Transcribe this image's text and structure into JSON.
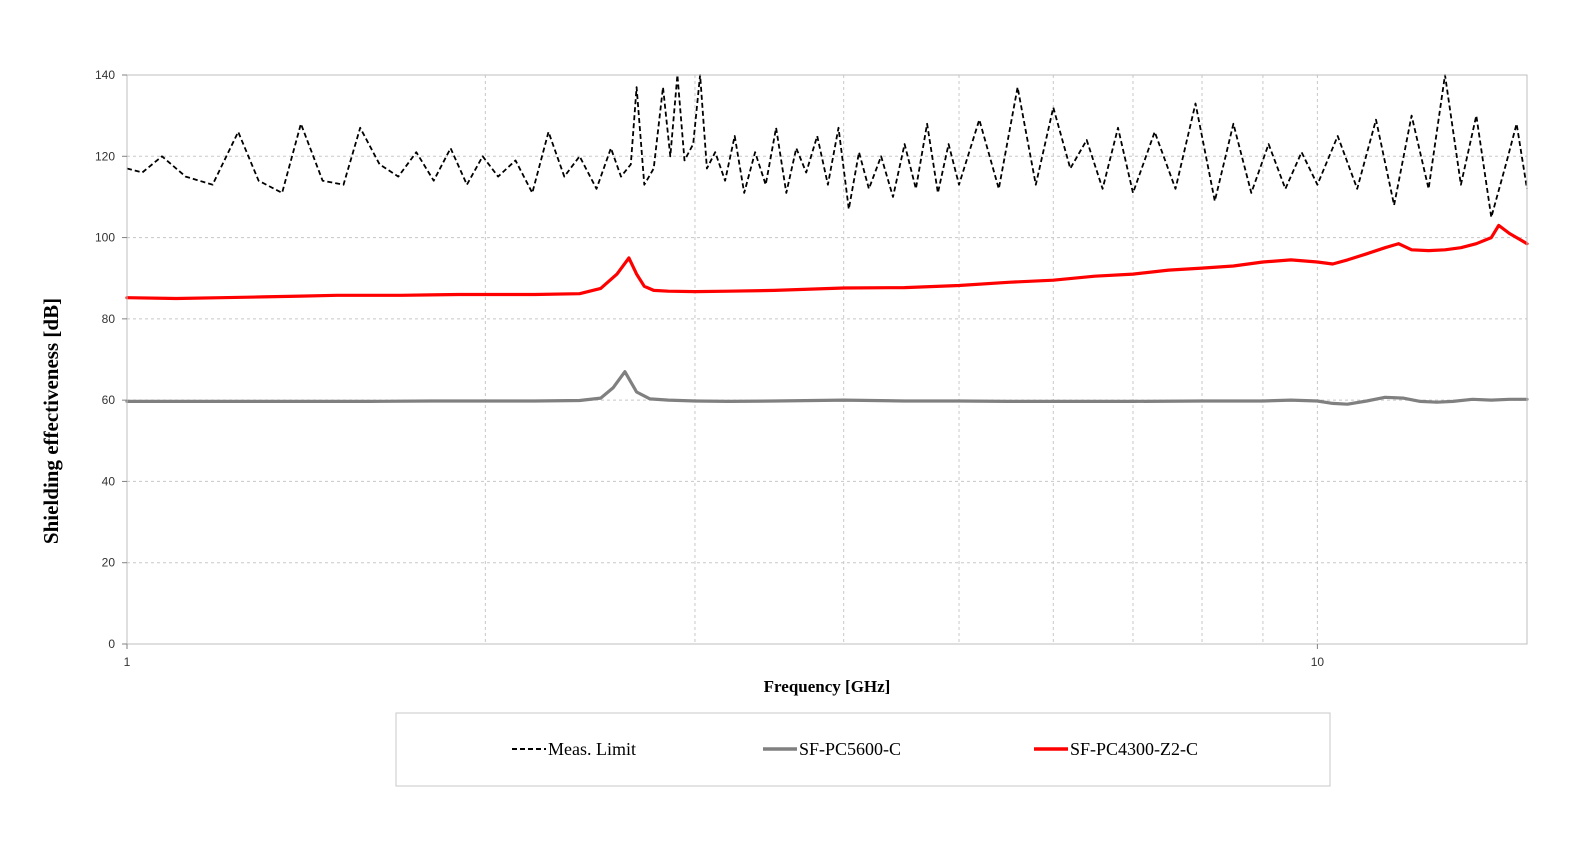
{
  "chart_data": {
    "type": "line",
    "title": "",
    "xlabel": "Frequency [GHz]",
    "ylabel": "Shielding effectiveness [dB]",
    "x_scale": "log",
    "xlim": [
      1,
      15
    ],
    "ylim": [
      0,
      140
    ],
    "x_ticks": [
      1,
      10
    ],
    "x_tick_labels": [
      "1",
      "10"
    ],
    "x_minor_gridlines": [
      2,
      3,
      4,
      5,
      6,
      7,
      8,
      9
    ],
    "y_ticks": [
      0,
      20,
      40,
      60,
      80,
      100,
      120,
      140
    ],
    "y_tick_labels": [
      "0",
      "20",
      "40",
      "60",
      "80",
      "100",
      "120",
      "140"
    ],
    "grid": true,
    "legend_position": "bottom",
    "series": [
      {
        "name": "Meas. Limit",
        "color": "#000000",
        "style": "dashed",
        "x": [
          1.0,
          1.03,
          1.07,
          1.12,
          1.18,
          1.24,
          1.29,
          1.35,
          1.4,
          1.46,
          1.52,
          1.57,
          1.63,
          1.69,
          1.75,
          1.81,
          1.87,
          1.93,
          1.99,
          2.05,
          2.12,
          2.19,
          2.26,
          2.33,
          2.4,
          2.48,
          2.55,
          2.6,
          2.65,
          2.68,
          2.72,
          2.77,
          2.82,
          2.86,
          2.9,
          2.94,
          2.99,
          3.03,
          3.07,
          3.12,
          3.18,
          3.24,
          3.3,
          3.37,
          3.44,
          3.51,
          3.58,
          3.65,
          3.72,
          3.8,
          3.88,
          3.96,
          4.04,
          4.12,
          4.2,
          4.3,
          4.4,
          4.5,
          4.6,
          4.7,
          4.8,
          4.9,
          5.0,
          5.2,
          5.4,
          5.6,
          5.8,
          6.0,
          6.2,
          6.4,
          6.6,
          6.8,
          7.0,
          7.3,
          7.6,
          7.9,
          8.2,
          8.5,
          8.8,
          9.1,
          9.4,
          9.7,
          10.0,
          10.4,
          10.8,
          11.2,
          11.6,
          12.0,
          12.4,
          12.8,
          13.2,
          13.6,
          14.0,
          14.4,
          14.7,
          15.0
        ],
        "y": [
          117,
          116,
          120,
          115,
          113,
          126,
          114,
          111,
          128,
          114,
          113,
          127,
          118,
          115,
          121,
          114,
          122,
          113,
          120,
          115,
          119,
          111,
          126,
          115,
          120,
          112,
          122,
          115,
          118,
          137,
          113,
          117,
          137,
          120,
          140,
          119,
          123,
          140,
          117,
          121,
          114,
          125,
          111,
          121,
          113,
          127,
          111,
          122,
          116,
          125,
          113,
          127,
          107,
          121,
          112,
          120,
          110,
          123,
          112,
          128,
          111,
          123,
          113,
          129,
          112,
          137,
          113,
          132,
          117,
          124,
          112,
          127,
          111,
          126,
          112,
          133,
          109,
          128,
          111,
          123,
          112,
          121,
          113,
          125,
          112,
          129,
          108,
          130,
          112,
          140,
          113,
          130,
          105,
          118,
          128,
          112
        ]
      },
      {
        "name": "SF-PC5600-C",
        "color": "#808080",
        "style": "solid",
        "x": [
          1.0,
          1.2,
          1.4,
          1.6,
          1.8,
          2.0,
          2.2,
          2.4,
          2.5,
          2.56,
          2.62,
          2.68,
          2.75,
          2.85,
          3.0,
          3.2,
          3.5,
          4.0,
          4.5,
          5.0,
          5.5,
          6.0,
          7.0,
          8.0,
          9.0,
          9.5,
          10.0,
          10.3,
          10.6,
          11.0,
          11.4,
          11.8,
          12.2,
          12.6,
          13.0,
          13.5,
          14.0,
          14.5,
          15.0
        ],
        "y": [
          59.7,
          59.7,
          59.7,
          59.7,
          59.8,
          59.8,
          59.8,
          59.9,
          60.5,
          63.0,
          67.0,
          62.0,
          60.3,
          60.0,
          59.8,
          59.7,
          59.8,
          60.0,
          59.8,
          59.8,
          59.7,
          59.7,
          59.7,
          59.8,
          59.8,
          60.0,
          59.8,
          59.2,
          59.0,
          59.8,
          60.7,
          60.5,
          59.7,
          59.5,
          59.7,
          60.2,
          60.0,
          60.2,
          60.2
        ]
      },
      {
        "name": "SF-PC4300-Z2-C",
        "color": "#ff0000",
        "style": "solid",
        "x": [
          1.0,
          1.1,
          1.2,
          1.3,
          1.4,
          1.5,
          1.6,
          1.7,
          1.8,
          1.9,
          2.0,
          2.2,
          2.4,
          2.5,
          2.58,
          2.64,
          2.68,
          2.72,
          2.77,
          2.85,
          3.0,
          3.2,
          3.5,
          4.0,
          4.5,
          5.0,
          5.5,
          6.0,
          6.5,
          7.0,
          7.5,
          8.0,
          8.5,
          9.0,
          9.5,
          10.0,
          10.3,
          10.6,
          11.0,
          11.4,
          11.7,
          12.0,
          12.4,
          12.8,
          13.2,
          13.6,
          14.0,
          14.2,
          14.5,
          14.8,
          15.0
        ],
        "y": [
          85.2,
          85.0,
          85.2,
          85.4,
          85.6,
          85.8,
          85.8,
          85.8,
          85.9,
          86.0,
          86.0,
          86.0,
          86.2,
          87.5,
          91.0,
          95.0,
          91.0,
          88.0,
          87.0,
          86.8,
          86.7,
          86.8,
          87.0,
          87.6,
          87.7,
          88.2,
          89.0,
          89.5,
          90.5,
          91.0,
          92.0,
          92.5,
          93.0,
          94.0,
          94.5,
          94.0,
          93.5,
          94.5,
          96.0,
          97.5,
          98.5,
          97.0,
          96.8,
          97.0,
          97.5,
          98.5,
          100.0,
          103.0,
          101.0,
          99.5,
          98.5
        ]
      }
    ]
  }
}
